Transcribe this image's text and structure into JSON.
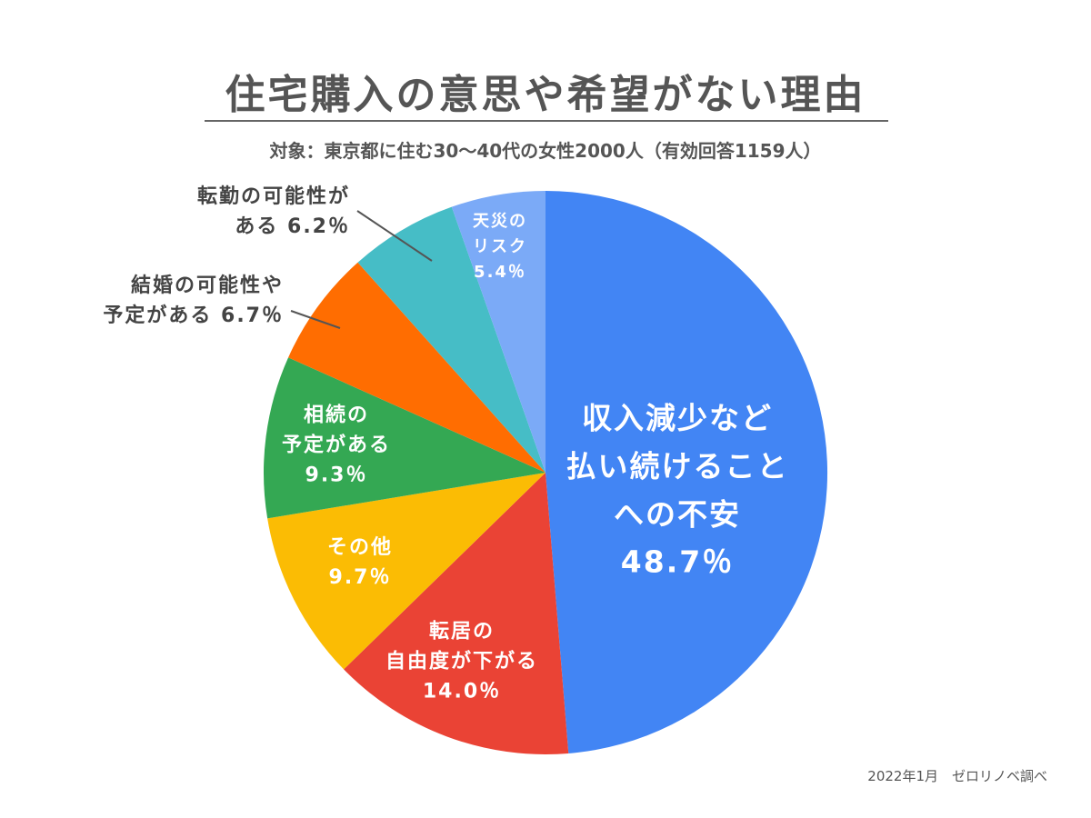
{
  "chart_data": {
    "type": "pie",
    "title": "住宅購入の意思や希望がない理由",
    "subtitle": "対象：東京都に住む30〜40代の女性2000人（有効回答1159人）",
    "start": "12 o'clock, clockwise",
    "slices": [
      {
        "name": "unease",
        "label_lines": [
          "収入減少など",
          "払い続けること",
          "への不安"
        ],
        "value_text": "48.7％",
        "value": 48.7,
        "color": "#4285f4",
        "label_placement": "inside"
      },
      {
        "name": "relocation",
        "label_lines": [
          "転居の",
          "自由度が下がる"
        ],
        "value_text": "14.0％",
        "value": 14.0,
        "color": "#ea4335",
        "label_placement": "inside"
      },
      {
        "name": "other",
        "label_lines": [
          "その他"
        ],
        "value_text": "9.7％",
        "value": 9.7,
        "color": "#fbbc04",
        "label_placement": "inside"
      },
      {
        "name": "inheritance",
        "label_lines": [
          "相続の",
          "予定がある"
        ],
        "value_text": "9.3％",
        "value": 9.3,
        "color": "#34a853",
        "label_placement": "inside"
      },
      {
        "name": "marriage",
        "label_lines": [
          "結婚の可能性や",
          "予定がある 6.7％"
        ],
        "value_text": "",
        "value": 6.7,
        "color": "#ff6d01",
        "label_placement": "outside"
      },
      {
        "name": "transfer",
        "label_lines": [
          "転勤の可能性が",
          "ある 6.2％"
        ],
        "value_text": "",
        "value": 6.2,
        "color": "#46bdc6",
        "label_placement": "outside"
      },
      {
        "name": "disaster",
        "label_lines": [
          "天災の",
          "リスク"
        ],
        "value_text": "5.4％",
        "value": 5.4,
        "color": "#7baaf7",
        "label_placement": "inside"
      }
    ],
    "source": "2022年1月　ゼロリノベ調べ"
  }
}
